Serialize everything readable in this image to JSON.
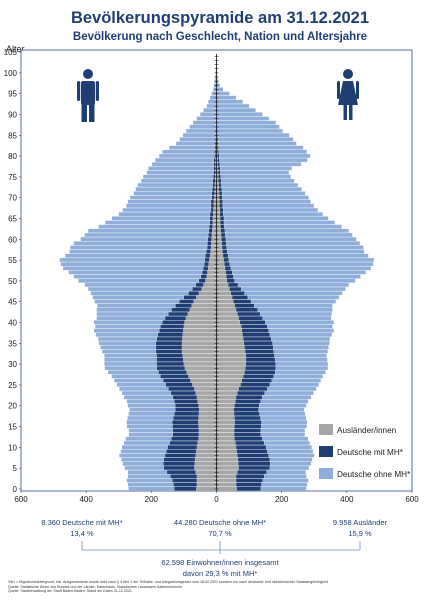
{
  "title": "Bevölkerungspyramide am 31.12.2021",
  "subtitle": "Bevölkerung nach Geschlecht, Nation und Altersjahre",
  "y_axis_title": "Alter",
  "colors": {
    "title": "#1f3f74",
    "auslaender": "#a6a6a6",
    "mh": "#1f3f74",
    "ohne_mh": "#8eadd9",
    "icon": "#1f3f74",
    "border": "#2c4f86"
  },
  "icons": {
    "left": "male-person-icon",
    "right": "female-person-icon"
  },
  "chart_data": {
    "type": "bar",
    "orientation": "horizontal",
    "stacked": true,
    "mirrored": true,
    "left_group": "Männer",
    "right_group": "Frauen",
    "y_ticks": [
      0,
      5,
      10,
      15,
      20,
      25,
      30,
      35,
      40,
      45,
      50,
      55,
      60,
      65,
      70,
      75,
      80,
      85,
      90,
      95,
      100,
      105
    ],
    "x_tick_values": [
      -600,
      -400,
      -200,
      0,
      200,
      400,
      600
    ],
    "x_tick_labels": [
      "600",
      "400",
      "200",
      "0",
      "200",
      "400",
      "600"
    ],
    "xlim": [
      -600,
      600
    ],
    "ylim": [
      0,
      105
    ],
    "legend_position": "lower-right",
    "series": [
      {
        "name": "Ausländer/innen",
        "key": "a"
      },
      {
        "name": "Deutsche mit MH*",
        "key": "m"
      },
      {
        "name": "Deutsche ohne MH*",
        "key": "d"
      }
    ],
    "ages": [
      0,
      1,
      2,
      3,
      4,
      5,
      6,
      7,
      8,
      9,
      10,
      11,
      12,
      13,
      14,
      15,
      16,
      17,
      18,
      19,
      20,
      21,
      22,
      23,
      24,
      25,
      26,
      27,
      28,
      29,
      30,
      31,
      32,
      33,
      34,
      35,
      36,
      37,
      38,
      39,
      40,
      41,
      42,
      43,
      44,
      45,
      46,
      47,
      48,
      49,
      50,
      51,
      52,
      53,
      54,
      55,
      56,
      57,
      58,
      59,
      60,
      61,
      62,
      63,
      64,
      65,
      66,
      67,
      68,
      69,
      70,
      71,
      72,
      73,
      74,
      75,
      76,
      77,
      78,
      79,
      80,
      81,
      82,
      83,
      84,
      85,
      86,
      87,
      88,
      89,
      90,
      91,
      92,
      93,
      94,
      95,
      96,
      97,
      98,
      99,
      100,
      101,
      102,
      103,
      104
    ],
    "male": {
      "a": [
        62,
        60,
        60,
        60,
        64,
        68,
        67,
        66,
        64,
        62,
        60,
        58,
        55,
        54,
        54,
        55,
        56,
        55,
        54,
        53,
        55,
        58,
        60,
        64,
        68,
        74,
        80,
        86,
        92,
        97,
        100,
        102,
        104,
        106,
        106,
        106,
        105,
        104,
        102,
        100,
        98,
        94,
        88,
        82,
        76,
        70,
        62,
        54,
        46,
        40,
        34,
        30,
        28,
        26,
        24,
        22,
        20,
        18,
        17,
        16,
        15,
        14,
        13,
        12,
        11,
        11,
        10,
        9,
        8,
        8,
        7,
        6,
        5,
        5,
        4,
        4,
        3,
        3,
        3,
        3,
        2,
        2,
        2,
        1,
        1,
        1,
        1,
        1,
        1,
        0,
        0,
        0,
        0,
        0,
        0,
        0,
        0,
        0,
        0,
        0,
        0,
        0,
        0,
        0,
        0
      ],
      "m": [
        68,
        72,
        76,
        82,
        88,
        94,
        96,
        96,
        94,
        92,
        90,
        86,
        84,
        80,
        80,
        80,
        80,
        78,
        76,
        74,
        72,
        72,
        74,
        76,
        80,
        82,
        84,
        86,
        86,
        86,
        84,
        82,
        80,
        80,
        80,
        80,
        78,
        76,
        74,
        72,
        68,
        64,
        60,
        56,
        50,
        44,
        38,
        32,
        28,
        24,
        20,
        18,
        16,
        15,
        14,
        14,
        14,
        13,
        12,
        12,
        12,
        11,
        11,
        10,
        10,
        10,
        10,
        9,
        9,
        9,
        8,
        8,
        8,
        7,
        7,
        6,
        6,
        6,
        5,
        5,
        4,
        4,
        3,
        3,
        2,
        2,
        2,
        1,
        1,
        1,
        0,
        0,
        0,
        0,
        0,
        0,
        0,
        0,
        0,
        0,
        0,
        0,
        0,
        0,
        0
      ],
      "d": [
        140,
        140,
        140,
        130,
        120,
        120,
        125,
        130,
        140,
        140,
        140,
        140,
        140,
        135,
        135,
        140,
        140,
        140,
        140,
        140,
        145,
        145,
        150,
        150,
        150,
        150,
        150,
        150,
        155,
        160,
        160,
        160,
        160,
        165,
        170,
        175,
        180,
        190,
        200,
        200,
        210,
        210,
        220,
        230,
        240,
        260,
        280,
        300,
        320,
        340,
        370,
        390,
        410,
        430,
        440,
        445,
        430,
        420,
        420,
        410,
        390,
        380,
        370,
        340,
        320,
        300,
        280,
        270,
        260,
        255,
        250,
        240,
        235,
        230,
        220,
        215,
        205,
        200,
        190,
        180,
        170,
        160,
        140,
        120,
        110,
        100,
        90,
        80,
        70,
        60,
        50,
        40,
        30,
        25,
        20,
        15,
        10,
        8,
        6,
        4,
        3,
        2,
        2,
        1,
        1
      ]
    },
    "female": {
      "a": [
        62,
        60,
        60,
        60,
        64,
        68,
        67,
        66,
        64,
        62,
        60,
        58,
        55,
        54,
        54,
        55,
        56,
        55,
        54,
        53,
        55,
        58,
        60,
        64,
        68,
        74,
        78,
        82,
        86,
        88,
        90,
        90,
        90,
        88,
        86,
        84,
        82,
        80,
        78,
        76,
        72,
        68,
        64,
        60,
        56,
        52,
        48,
        44,
        40,
        36,
        32,
        30,
        28,
        26,
        24,
        22,
        20,
        18,
        17,
        16,
        15,
        14,
        13,
        12,
        11,
        11,
        10,
        10,
        9,
        9,
        8,
        8,
        7,
        7,
        6,
        6,
        5,
        5,
        4,
        4,
        3,
        3,
        2,
        2,
        2,
        1,
        1,
        1,
        1,
        0,
        0,
        0,
        0,
        0,
        0,
        0,
        0,
        0,
        0,
        0,
        0,
        0,
        0,
        0,
        0
      ],
      "m": [
        74,
        78,
        82,
        86,
        90,
        96,
        98,
        98,
        96,
        94,
        92,
        88,
        86,
        82,
        82,
        82,
        82,
        80,
        78,
        76,
        76,
        78,
        80,
        84,
        88,
        90,
        92,
        94,
        94,
        94,
        92,
        90,
        88,
        88,
        88,
        88,
        86,
        84,
        82,
        80,
        78,
        74,
        70,
        66,
        60,
        54,
        48,
        42,
        36,
        30,
        24,
        22,
        20,
        18,
        17,
        16,
        16,
        15,
        14,
        14,
        14,
        13,
        13,
        12,
        12,
        12,
        11,
        11,
        10,
        10,
        10,
        9,
        9,
        8,
        8,
        7,
        7,
        6,
        6,
        5,
        5,
        4,
        4,
        3,
        3,
        2,
        2,
        2,
        1,
        1,
        1,
        0,
        0,
        0,
        0,
        0,
        0,
        0,
        0,
        0,
        0,
        0,
        0,
        0,
        0
      ],
      "d": [
        140,
        140,
        140,
        130,
        120,
        120,
        125,
        130,
        140,
        140,
        140,
        140,
        140,
        135,
        135,
        140,
        140,
        140,
        140,
        140,
        145,
        145,
        150,
        150,
        150,
        150,
        150,
        150,
        155,
        160,
        160,
        160,
        160,
        165,
        170,
        175,
        180,
        190,
        200,
        200,
        210,
        210,
        220,
        230,
        240,
        260,
        280,
        300,
        320,
        340,
        370,
        390,
        410,
        430,
        440,
        445,
        430,
        420,
        420,
        410,
        400,
        390,
        380,
        360,
        340,
        320,
        305,
        290,
        280,
        270,
        265,
        255,
        245,
        235,
        225,
        215,
        210,
        220,
        250,
        270,
        280,
        270,
        260,
        240,
        230,
        220,
        200,
        190,
        180,
        160,
        140,
        120,
        100,
        80,
        60,
        40,
        20,
        10,
        6,
        3,
        2,
        1,
        1,
        0,
        0
      ]
    },
    "summary": {
      "mh": {
        "line1": "8.360 Deutsche mit MH*",
        "line2": "13,4 %"
      },
      "ohne_mh": {
        "line1": "44.280 Deutsche ohne MH*",
        "line2": "70,7 %"
      },
      "auslaender": {
        "line1": "9.958 Ausländer",
        "line2": "15,9 %"
      },
      "total": {
        "line1": "62.598 Einwohner/innen insgesamt",
        "line2": "davon 29,3 % mit MH*"
      }
    }
  },
  "footnote": {
    "line1": "*MH = Migrationshintergrund, inkl. Ausgewanderte wurde nicht nach § 4 Abs 1 der Teilhabe- und Integrationsgesetz vom 18.02.2021 sondern nur nach deutscher und nichtdeutscher Staatsangehörigkeit",
    "line2": "Quelle: Statistische Ämter des Bundes und der Länder; Datenbasis: Statistisches Landesamt Datenrecherche",
    "line3": "Quelle: Stadtverwaltung der Stadt Baden-Baden; Stand der Daten 31.12.2021"
  }
}
